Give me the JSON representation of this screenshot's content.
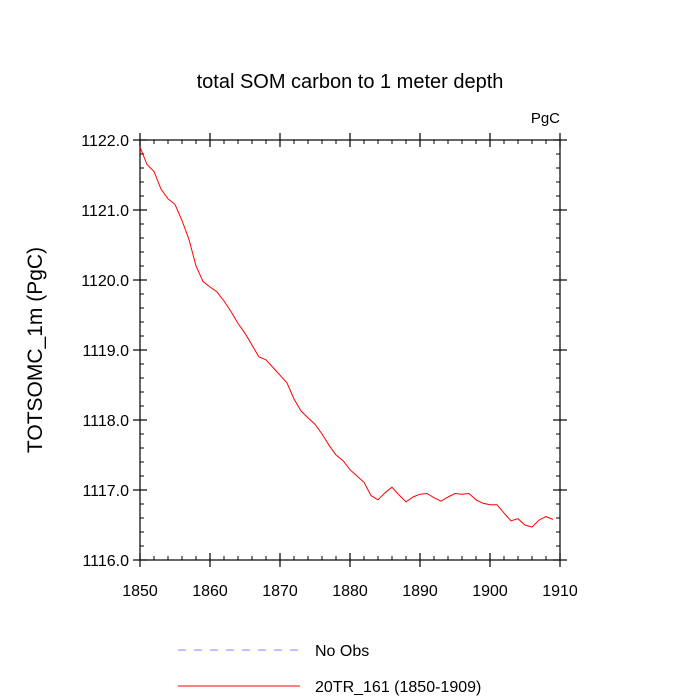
{
  "chart_data": {
    "type": "line",
    "title": "total SOM carbon to 1 meter depth",
    "units": "PgC",
    "ylabel": "TOTSOMC_1m  (PgC)",
    "xlim": [
      1850,
      1910
    ],
    "ylim": [
      1116.0,
      1122.0
    ],
    "x_ticks": [
      1850,
      1860,
      1870,
      1880,
      1890,
      1900,
      1910
    ],
    "x_tick_labels": [
      "1850",
      "1860",
      "1870",
      "1880",
      "1890",
      "1900",
      "1910"
    ],
    "y_ticks": [
      1116.0,
      1117.0,
      1118.0,
      1119.0,
      1120.0,
      1121.0,
      1122.0
    ],
    "y_tick_labels": [
      "1116.0",
      "1117.0",
      "1118.0",
      "1119.0",
      "1120.0",
      "1121.0",
      "1122.0"
    ],
    "grid": false,
    "legend_position": "bottom",
    "series": [
      {
        "name": "No Obs",
        "color": "#8080ff",
        "dash": true,
        "x": [],
        "y": []
      },
      {
        "name": "20TR_161 (1850-1909)",
        "color": "#ff0000",
        "dash": false,
        "x": [
          1850,
          1851,
          1852,
          1853,
          1854,
          1855,
          1856,
          1857,
          1858,
          1859,
          1860,
          1861,
          1862,
          1863,
          1864,
          1865,
          1866,
          1867,
          1868,
          1869,
          1870,
          1871,
          1872,
          1873,
          1874,
          1875,
          1876,
          1877,
          1878,
          1879,
          1880,
          1881,
          1882,
          1883,
          1884,
          1885,
          1886,
          1887,
          1888,
          1889,
          1890,
          1891,
          1892,
          1893,
          1894,
          1895,
          1896,
          1897,
          1898,
          1899,
          1900,
          1901,
          1902,
          1903,
          1904,
          1905,
          1906,
          1907,
          1908,
          1909
        ],
        "y": [
          1121.9,
          1121.65,
          1121.55,
          1121.3,
          1121.16,
          1121.08,
          1120.85,
          1120.58,
          1120.2,
          1119.98,
          1119.9,
          1119.83,
          1119.7,
          1119.55,
          1119.38,
          1119.24,
          1119.07,
          1118.9,
          1118.86,
          1118.75,
          1118.64,
          1118.53,
          1118.3,
          1118.13,
          1118.03,
          1117.94,
          1117.8,
          1117.64,
          1117.5,
          1117.42,
          1117.29,
          1117.2,
          1117.11,
          1116.92,
          1116.86,
          1116.96,
          1117.04,
          1116.93,
          1116.83,
          1116.9,
          1116.94,
          1116.95,
          1116.89,
          1116.84,
          1116.9,
          1116.95,
          1116.94,
          1116.95,
          1116.86,
          1116.81,
          1116.79,
          1116.79,
          1116.67,
          1116.56,
          1116.59,
          1116.5,
          1116.47,
          1116.57,
          1116.62,
          1116.58
        ]
      }
    ]
  }
}
